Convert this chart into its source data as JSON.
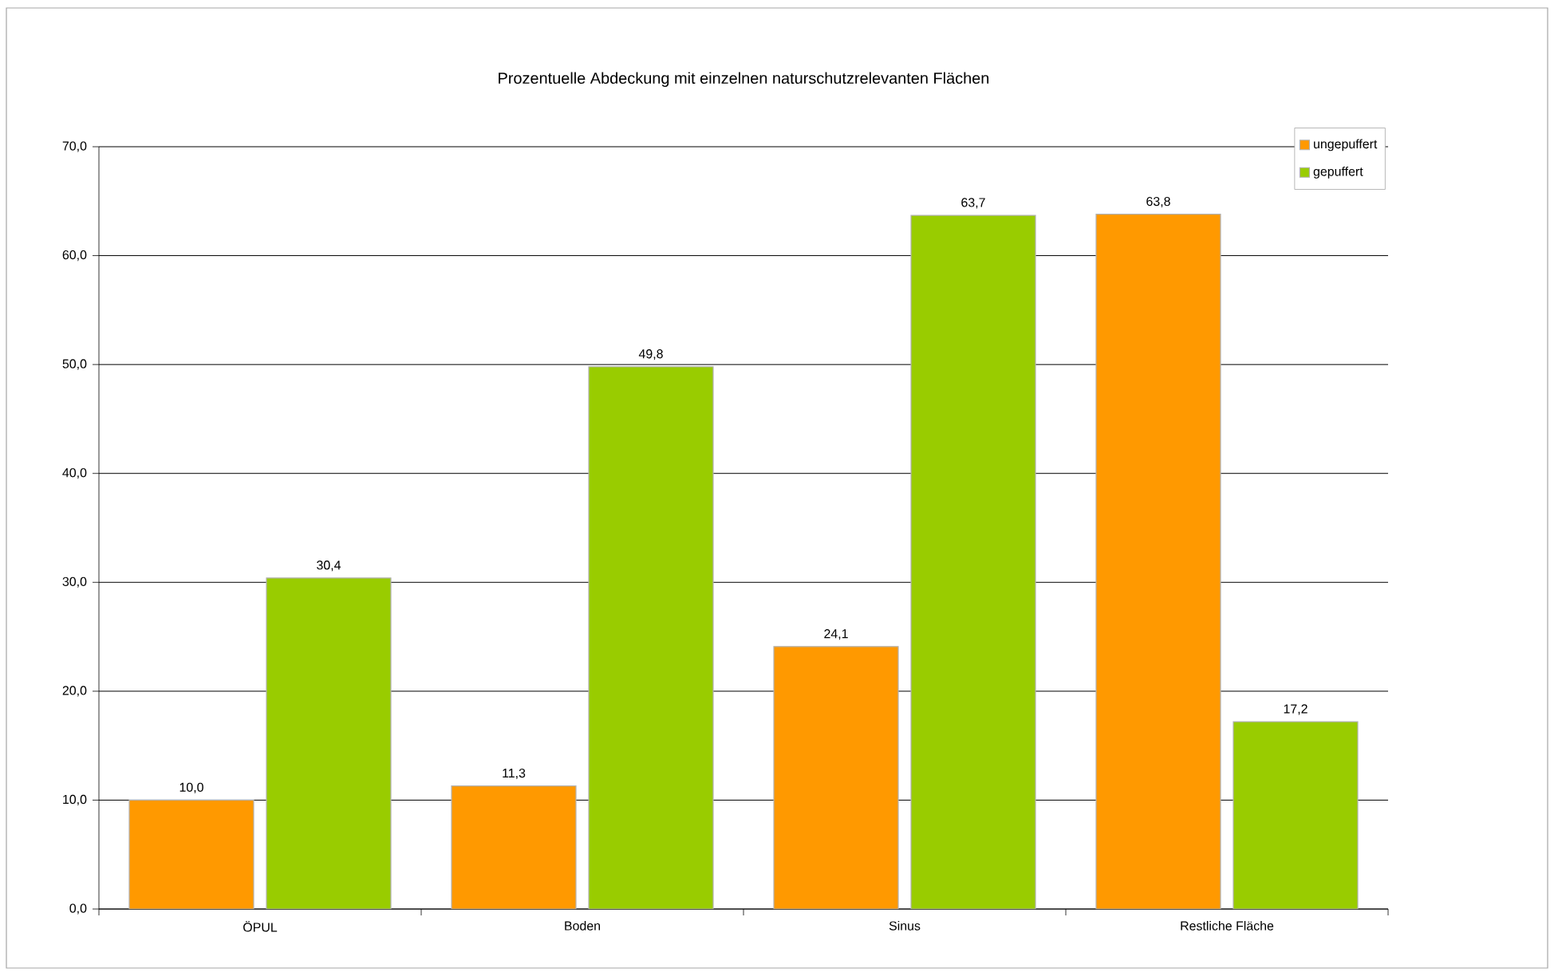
{
  "chart_data": {
    "type": "bar",
    "title": "Prozentuelle Abdeckung mit einzelnen naturschutzrelevanten Flächen",
    "categories": [
      "ÖPUL",
      "Boden",
      "Sinus",
      "Restliche Fläche"
    ],
    "series": [
      {
        "name": "ungepuffert",
        "color": "#ff9900",
        "values": [
          10.0,
          11.3,
          24.1,
          63.8
        ],
        "value_labels": [
          "10,0",
          "11,3",
          "24,1",
          "63,8"
        ]
      },
      {
        "name": "gepuffert",
        "color": "#99cc00",
        "values": [
          30.4,
          49.8,
          63.7,
          17.2
        ],
        "value_labels": [
          "30,4",
          "49,8",
          "63,7",
          "17,2"
        ]
      }
    ],
    "ylim": [
      0,
      70
    ],
    "yticks": [
      {
        "value": 0,
        "label": "0,0"
      },
      {
        "value": 10,
        "label": "10,0"
      },
      {
        "value": 20,
        "label": "20,0"
      },
      {
        "value": 30,
        "label": "30,0"
      },
      {
        "value": 40,
        "label": "40,0"
      },
      {
        "value": 50,
        "label": "50,0"
      },
      {
        "value": 60,
        "label": "60,0"
      },
      {
        "value": 70,
        "label": "70,0"
      }
    ],
    "grid": "y",
    "legend": "top right"
  }
}
